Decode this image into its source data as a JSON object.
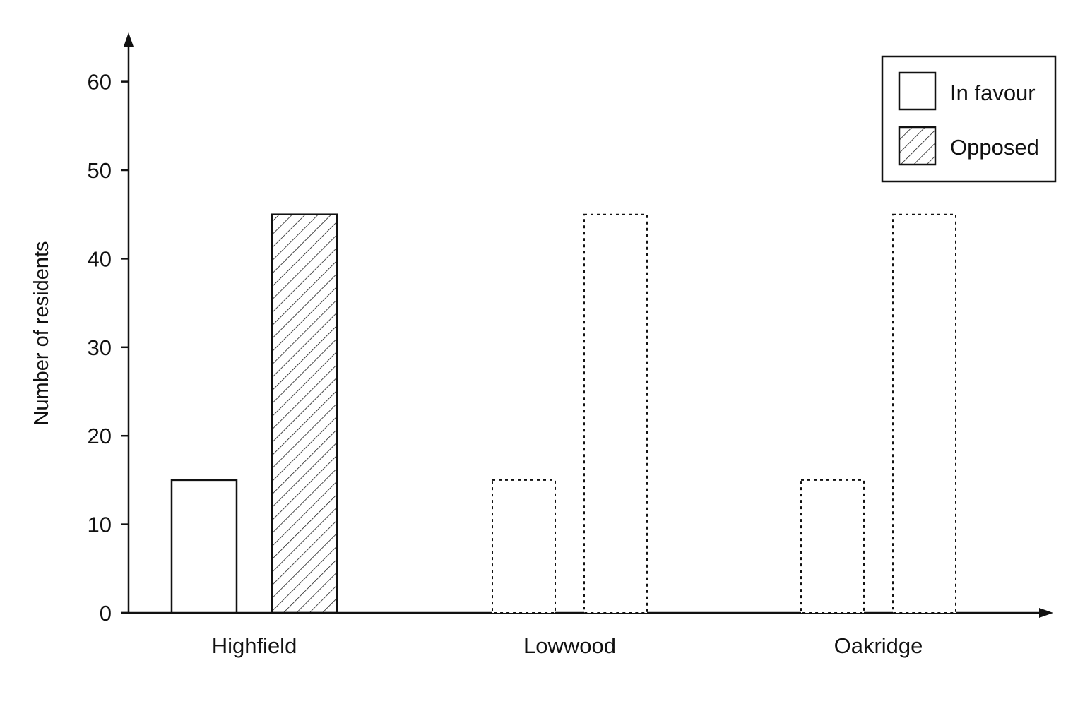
{
  "chart_data": {
    "type": "bar",
    "title": "",
    "xlabel": "",
    "ylabel": "Number of residents",
    "categories": [
      "Highfield",
      "Lowwood",
      "Oakridge"
    ],
    "series": [
      {
        "name": "In favour",
        "values": [
          15,
          15,
          15
        ],
        "pattern": "plain"
      },
      {
        "name": "Opposed",
        "values": [
          45,
          45,
          45
        ],
        "pattern": "hatch"
      }
    ],
    "bar_style_by_category": [
      "solid",
      "dotted-outline",
      "dotted-outline"
    ],
    "ylim": [
      0,
      65
    ],
    "yticks": [
      0,
      10,
      20,
      30,
      40,
      50,
      60
    ],
    "grid": false,
    "legend_position": "top-right",
    "colors": {
      "ink": "#111111",
      "fill": "#ffffff"
    }
  }
}
